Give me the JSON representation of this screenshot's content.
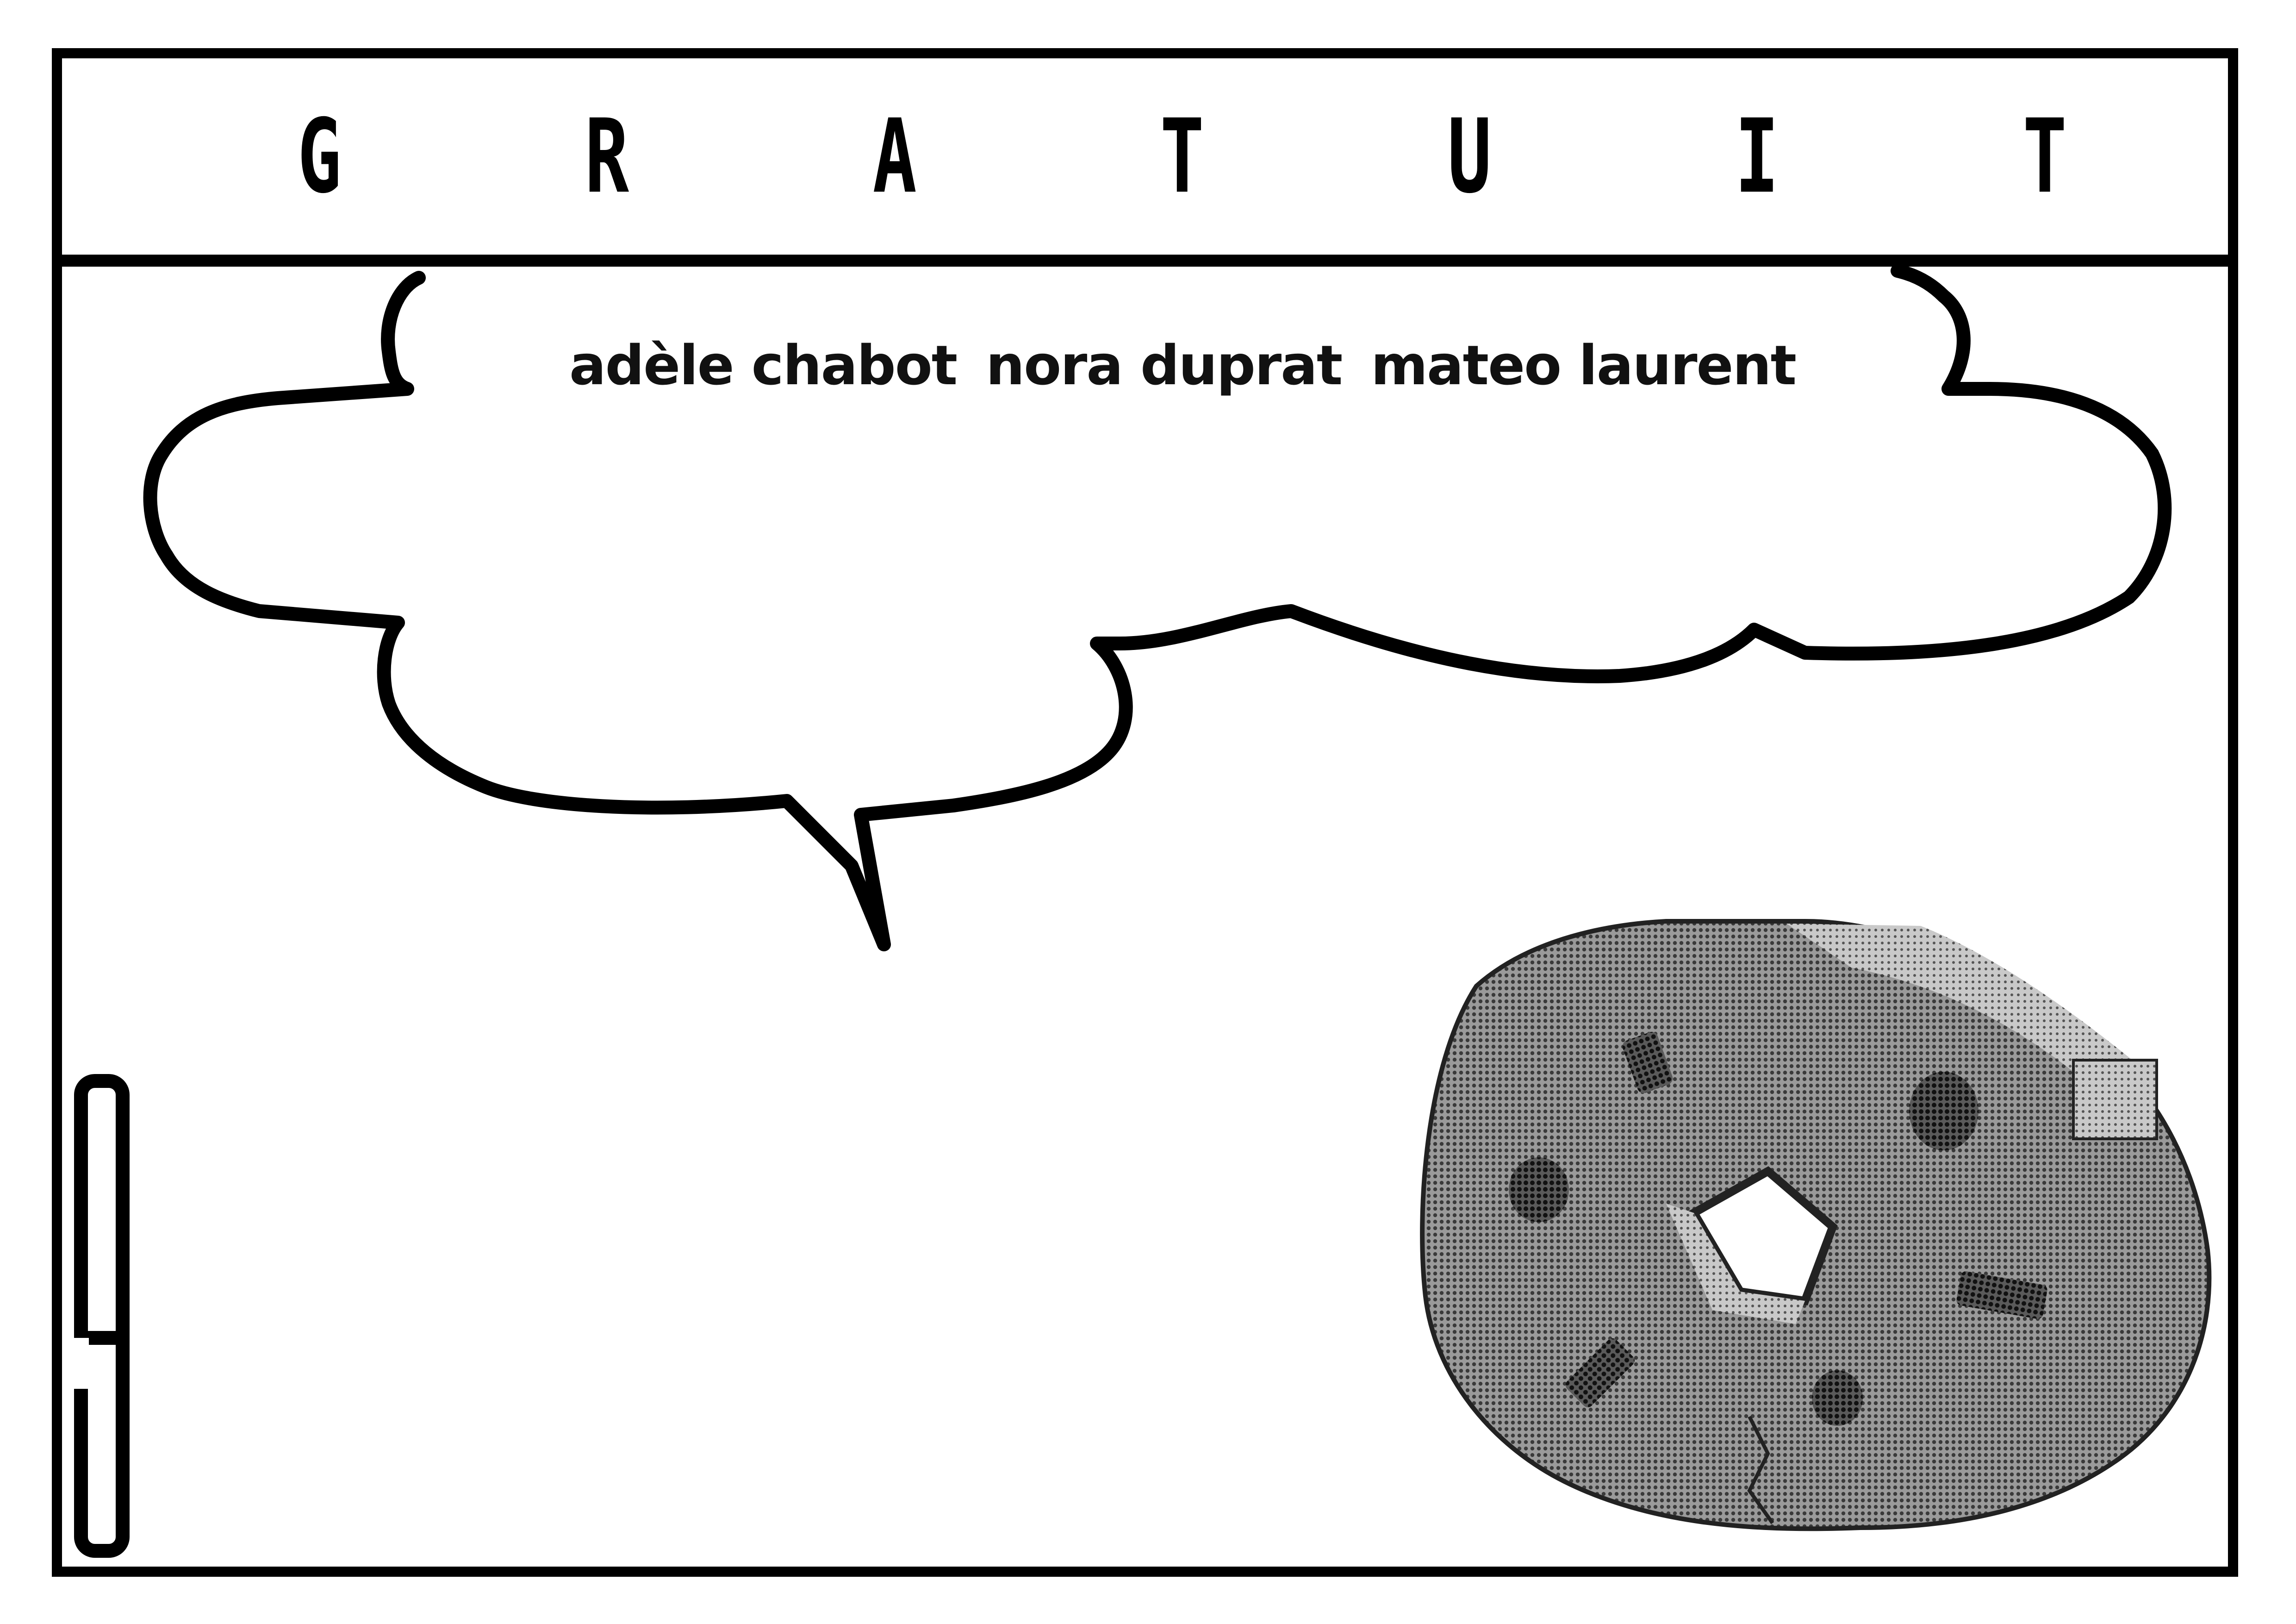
{
  "header": {
    "letters": [
      "G",
      "R",
      "A",
      "T",
      "U",
      "I",
      "T"
    ]
  },
  "bubble": {
    "names": [
      "adèle chabot",
      "nora duprat",
      "mateo laurent"
    ]
  },
  "side_mark": {
    "icon": "rotated-digit-9-glyph"
  },
  "illustration": {
    "icon": "halftone-stone-millstone"
  },
  "colors": {
    "ink": "#000000",
    "paper": "#ffffff",
    "stone_dark": "#5a5a5a",
    "stone_mid": "#8c8c8c",
    "stone_light": "#b8b8b8"
  }
}
